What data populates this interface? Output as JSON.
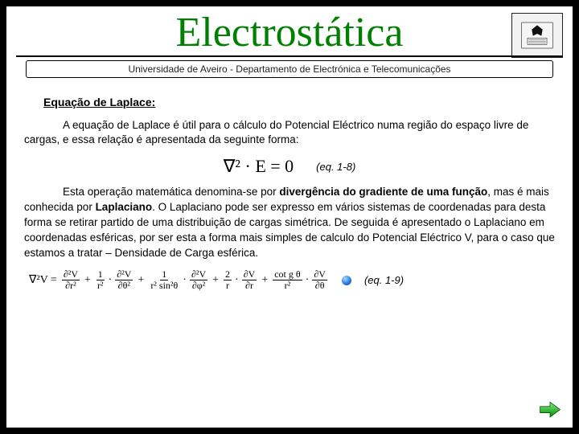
{
  "header": {
    "title": "Electrostática",
    "subtitle": "Universidade de Aveiro - Departamento de Electrónica e Telecomunicações",
    "title_color": "#008000"
  },
  "content": {
    "heading": "Equação de Laplace:",
    "para1_a": "A equação de Laplace é útil para o cálculo do Potencial Eléctrico numa região do espaço livre de cargas, e essa relação é apresentada da seguinte forma:",
    "eq1": "∇² · E = 0",
    "eq1_label": "(eq. 1-8)",
    "para2_a": "Esta operação matemática denomina-se por ",
    "para2_b1": "divergência do gradiente de uma função",
    "para2_c": ", mas é mais conhecida por ",
    "para2_b2": "Laplaciano",
    "para2_d": ". O Laplaciano pode ser expresso em vários sistemas de coordenadas para desta forma se retirar partido de uma distribuição de cargas simétrica. De seguida é apresentado o Laplaciano em coordenadas esféricas, por ser esta a forma mais simples de calculo do Potencial Eléctrico V, para o caso que estamos a tratar – Densidade de Carga esférica.",
    "eq2_prefix": "∇²V =",
    "eq2_terms": [
      {
        "num": "∂²V",
        "den": "∂r²"
      },
      {
        "coef": "1",
        "coefden": "r²",
        "num": "∂²V",
        "den": "∂θ²"
      },
      {
        "coef": "1",
        "coefden": "r² sin²θ",
        "num": "∂²V",
        "den": "∂φ²"
      },
      {
        "coef": "2",
        "coefden": "r",
        "num": "∂V",
        "den": "∂r"
      },
      {
        "coef": "cot g θ",
        "coefden": "r²",
        "num": "∂V",
        "den": "∂θ"
      }
    ],
    "eq2_label": "(eq. 1-9)"
  },
  "nav": {
    "next_color": "#24b324"
  }
}
